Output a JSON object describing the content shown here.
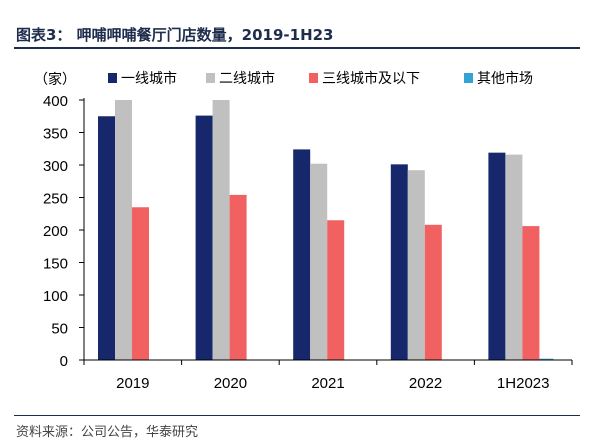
{
  "title": "图表3：  呷哺呷哺餐厅门店数量，2019-1H23",
  "source": "资料来源：公司公告，华泰研究",
  "unit": "（家）",
  "colors": {
    "series": [
      "#16286b",
      "#c0c0c0",
      "#f26161",
      "#33a3d6"
    ],
    "axis": "#000000",
    "title": "#1f2d4d"
  },
  "chart_data": {
    "type": "bar",
    "categories": [
      "2019",
      "2020",
      "2021",
      "2022",
      "1H2023"
    ],
    "series": [
      {
        "name": "一线城市",
        "values": [
          375,
          376,
          324,
          301,
          319
        ]
      },
      {
        "name": "二线城市",
        "values": [
          400,
          400,
          302,
          292,
          316
        ]
      },
      {
        "name": "三线城市及以下",
        "values": [
          235,
          254,
          215,
          208,
          206
        ]
      },
      {
        "name": "其他市场",
        "values": [
          0,
          0,
          0,
          0,
          2
        ]
      }
    ],
    "ylabel": "（家）",
    "ylim": [
      0,
      400
    ],
    "yticks": [
      0,
      50,
      100,
      150,
      200,
      250,
      300,
      350,
      400
    ],
    "grid": false,
    "legend": "top"
  }
}
